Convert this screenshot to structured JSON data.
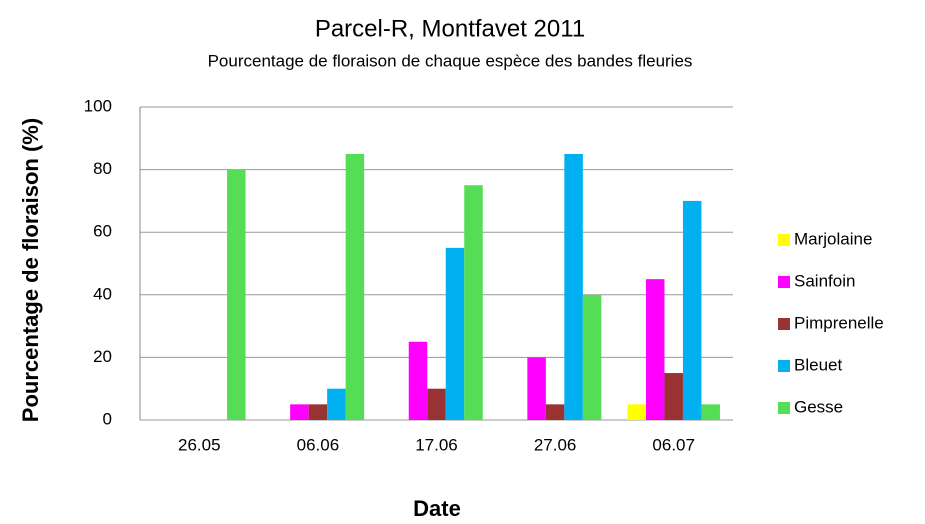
{
  "chart_data": {
    "type": "bar",
    "title": "Parcel-R, Montfavet 2011",
    "subtitle": "Pourcentage de floraison de chaque espèce des bandes fleuries",
    "xlabel": "Date",
    "ylabel": "Pourcentage de floraison (%)",
    "categories": [
      "26.05",
      "06.06",
      "17.06",
      "27.06",
      "06.07"
    ],
    "series": [
      {
        "name": "Marjolaine",
        "color": "#ffff00",
        "values": [
          0,
          0,
          0,
          0,
          5
        ]
      },
      {
        "name": "Sainfoin",
        "color": "#ff00ff",
        "values": [
          0,
          5,
          25,
          20,
          45
        ]
      },
      {
        "name": "Pimprenelle",
        "color": "#993333",
        "values": [
          0,
          5,
          10,
          5,
          15
        ]
      },
      {
        "name": "Bleuet",
        "color": "#00b0f0",
        "values": [
          0,
          10,
          55,
          85,
          70
        ]
      },
      {
        "name": "Gesse",
        "color": "#55dd55",
        "values": [
          80,
          85,
          75,
          40,
          5
        ]
      }
    ],
    "ylim": [
      0,
      100
    ],
    "yticks": [
      0,
      20,
      40,
      60,
      80,
      100
    ],
    "grid": true,
    "legend": "right"
  }
}
